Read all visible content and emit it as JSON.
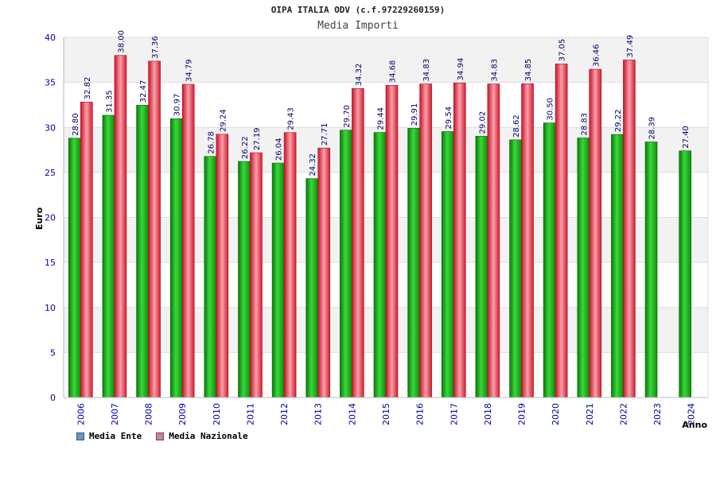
{
  "chart_data": {
    "type": "bar",
    "title": "OIPA ITALIA ODV (c.f.97229260159)",
    "subtitle": "Media Importi",
    "xlabel": "Anno",
    "ylabel": "Euro",
    "ylim": [
      0,
      40
    ],
    "yticks": [
      "0",
      "5",
      "10",
      "15",
      "20",
      "25",
      "30",
      "35",
      "40"
    ],
    "categories": [
      "2006",
      "2007",
      "2008",
      "2009",
      "2010",
      "2011",
      "2012",
      "2013",
      "2014",
      "2015",
      "2016",
      "2017",
      "2018",
      "2019",
      "2020",
      "2021",
      "2022",
      "2023",
      "2024"
    ],
    "series": [
      {
        "name": "Media Ente",
        "values": [
          28.8,
          31.35,
          32.47,
          30.97,
          26.78,
          26.22,
          26.04,
          24.32,
          29.7,
          29.44,
          29.91,
          29.54,
          29.02,
          28.62,
          30.5,
          28.83,
          29.22,
          28.39,
          27.4
        ],
        "labels": [
          "28.80",
          "31.35",
          "32.47",
          "30.97",
          "26.78",
          "26.22",
          "26.04",
          "24.32",
          "29.70",
          "29.44",
          "29.91",
          "29.54",
          "29.02",
          "28.62",
          "30.50",
          "28.83",
          "29.22",
          "28.39",
          "27.40"
        ]
      },
      {
        "name": "Media Nazionale",
        "values": [
          32.82,
          38.0,
          37.36,
          34.79,
          29.24,
          27.19,
          29.43,
          27.71,
          34.32,
          34.68,
          34.83,
          34.94,
          34.83,
          34.85,
          37.05,
          36.46,
          37.49,
          null,
          null
        ],
        "labels": [
          "32.82",
          "38.00",
          "37.36",
          "34.79",
          "29.24",
          "27.19",
          "29.43",
          "27.71",
          "34.32",
          "34.68",
          "34.83",
          "34.94",
          "34.83",
          "34.85",
          "37.05",
          "36.46",
          "37.49",
          "",
          ""
        ]
      }
    ],
    "legend": [
      {
        "name": "Media Ente",
        "color": "#5b9bd5"
      },
      {
        "name": "Media Nazionale",
        "color": "#d87aa0"
      }
    ],
    "colors": {
      "ente": "#14b014",
      "nazionale": "#e8283c",
      "axis_text": "#0000aa",
      "value_text": "#000066",
      "band": "#f2f2f2"
    }
  }
}
